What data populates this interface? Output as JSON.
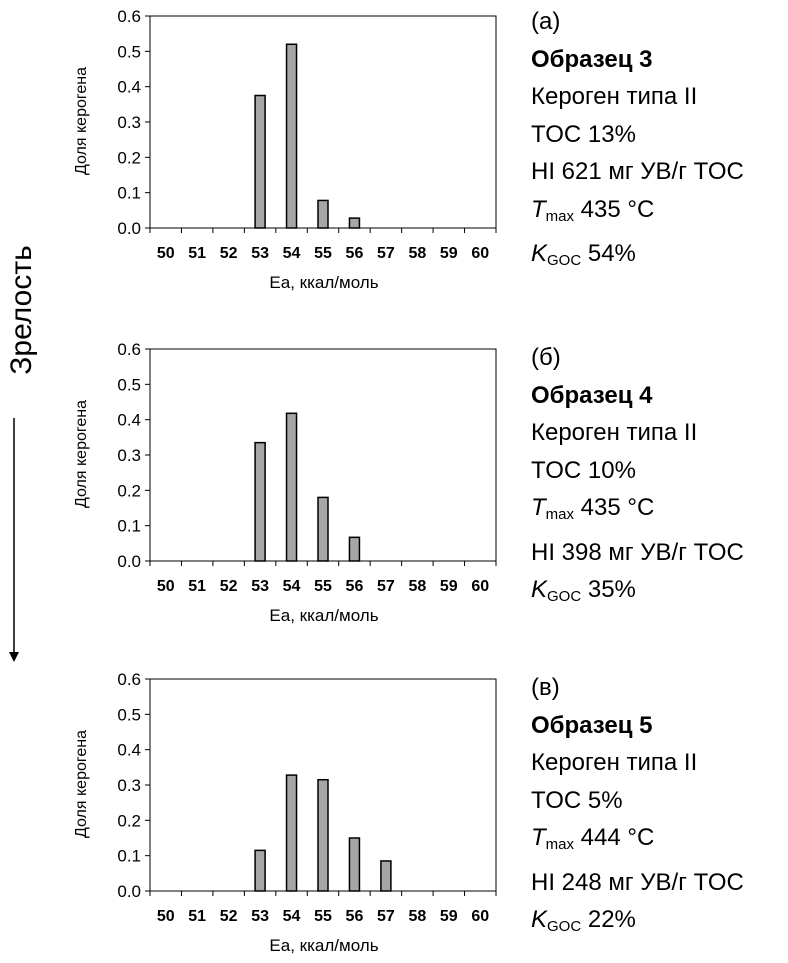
{
  "maturity_label": "Зрелость",
  "colors": {
    "bar_fill": "#a6a6a6",
    "bar_stroke": "#000000",
    "axis": "#000000"
  },
  "chart_data": [
    {
      "type": "bar",
      "ylabel": "Доля керогена",
      "xlabel": "Ea, ккал/моль",
      "categories": [
        "50",
        "51",
        "52",
        "53",
        "54",
        "55",
        "56",
        "57",
        "58",
        "59",
        "60"
      ],
      "values": [
        0,
        0,
        0,
        0.375,
        0.52,
        0.078,
        0.028,
        0,
        0,
        0,
        0
      ],
      "yticks": [
        "0.0",
        "0.1",
        "0.2",
        "0.3",
        "0.4",
        "0.5",
        "0.6"
      ],
      "ylim": [
        0,
        0.6
      ],
      "grid": false
    },
    {
      "type": "bar",
      "ylabel": "Доля керогена",
      "xlabel": "Ea, ккал/моль",
      "categories": [
        "50",
        "51",
        "52",
        "53",
        "54",
        "55",
        "56",
        "57",
        "58",
        "59",
        "60"
      ],
      "values": [
        0,
        0,
        0,
        0.335,
        0.418,
        0.18,
        0.067,
        0,
        0,
        0,
        0
      ],
      "yticks": [
        "0.0",
        "0.1",
        "0.2",
        "0.3",
        "0.4",
        "0.5",
        "0.6"
      ],
      "ylim": [
        0,
        0.6
      ],
      "grid": false
    },
    {
      "type": "bar",
      "ylabel": "Доля керогена",
      "xlabel": "Ea, ккал/моль",
      "categories": [
        "50",
        "51",
        "52",
        "53",
        "54",
        "55",
        "56",
        "57",
        "58",
        "59",
        "60"
      ],
      "values": [
        0,
        0,
        0,
        0.115,
        0.328,
        0.315,
        0.15,
        0.085,
        0,
        0,
        0
      ],
      "yticks": [
        "0.0",
        "0.1",
        "0.2",
        "0.3",
        "0.4",
        "0.5",
        "0.6"
      ],
      "ylim": [
        0,
        0.6
      ],
      "grid": false
    }
  ],
  "samples": [
    {
      "letter": "(а)",
      "name": "Образец 3",
      "kerogen": "Кероген типа II",
      "toc": "TOC 13%",
      "hi": "HI 621 мг УВ/г TOC",
      "tmax": {
        "symbol": "T",
        "sub": "max",
        "value": " 435 °C"
      },
      "kgoc": {
        "symbol": "K",
        "sub": "GOC",
        "value": " 54%"
      }
    },
    {
      "letter": "(б)",
      "name": "Образец 4",
      "kerogen": "Кероген типа II",
      "toc": "TOC 10%",
      "tmax": {
        "symbol": "T",
        "sub": "max",
        "value": " 435 °C"
      },
      "hi": "HI 398 мг УВ/г TOC",
      "kgoc": {
        "symbol": "K",
        "sub": "GOC",
        "value": " 35%"
      }
    },
    {
      "letter": "(в)",
      "name": "Образец 5",
      "kerogen": "Кероген типа II",
      "toc": "TOC 5%",
      "tmax": {
        "symbol": "T",
        "sub": "max",
        "value": " 444 °C"
      },
      "hi": "HI 248 мг УВ/г TOC",
      "kgoc": {
        "symbol": "K",
        "sub": "GOC",
        "value": " 22%"
      }
    }
  ]
}
